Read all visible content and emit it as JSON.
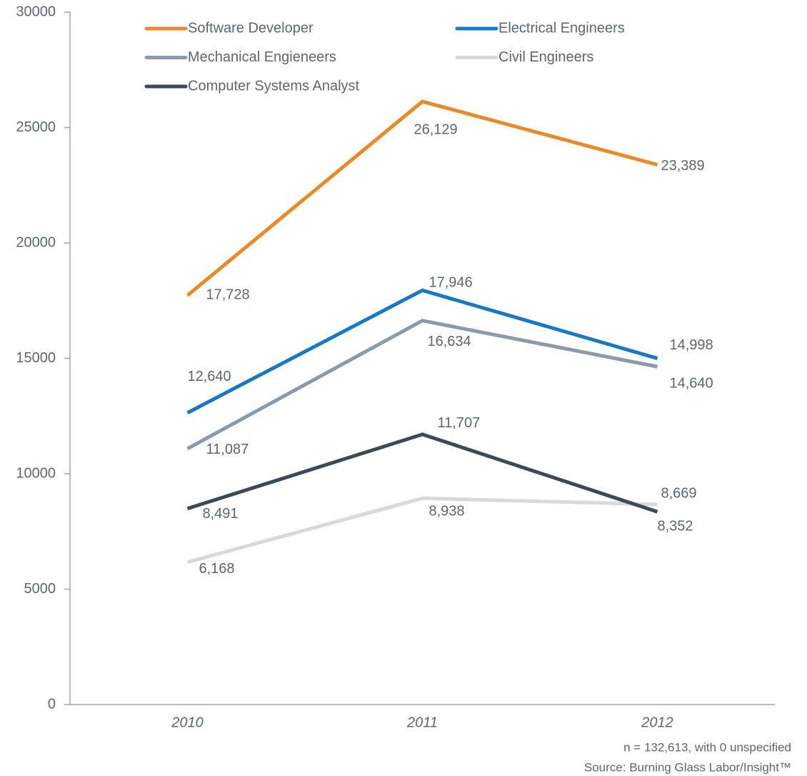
{
  "chart_data": {
    "type": "line",
    "categories": [
      "2010",
      "2011",
      "2012"
    ],
    "series": [
      {
        "name": "Software Developer",
        "color": "#e8892b",
        "values": [
          17728,
          26129,
          23389
        ],
        "value_labels": [
          "17,728",
          "26,129",
          "23,389"
        ]
      },
      {
        "name": "Electrical Engineers",
        "color": "#1a78c2",
        "values": [
          12640,
          17946,
          14998
        ],
        "value_labels": [
          "12,640",
          "17,946",
          "14,998"
        ]
      },
      {
        "name": "Mechanical Engieneers",
        "color": "#8b9aa8",
        "values": [
          11087,
          16634,
          14640
        ],
        "value_labels": [
          "11,087",
          "16,634",
          "14,640"
        ]
      },
      {
        "name": "Civil Engineers",
        "color": "#d9d9d9",
        "values": [
          6168,
          8938,
          8669
        ],
        "value_labels": [
          "6,168",
          "8,938",
          "8,669"
        ]
      },
      {
        "name": "Computer Systems Analyst",
        "color": "#3d4a56",
        "values": [
          8491,
          11707,
          8352
        ],
        "value_labels": [
          "8,491",
          "11,707",
          "8,352"
        ]
      }
    ],
    "ylim": [
      0,
      30000
    ],
    "yticks": [
      0,
      5000,
      10000,
      15000,
      20000,
      25000,
      30000
    ],
    "notes": [
      "n = 132,613, with 0 unspecified",
      "Source: Burning Glass Labor/Insight™"
    ]
  }
}
